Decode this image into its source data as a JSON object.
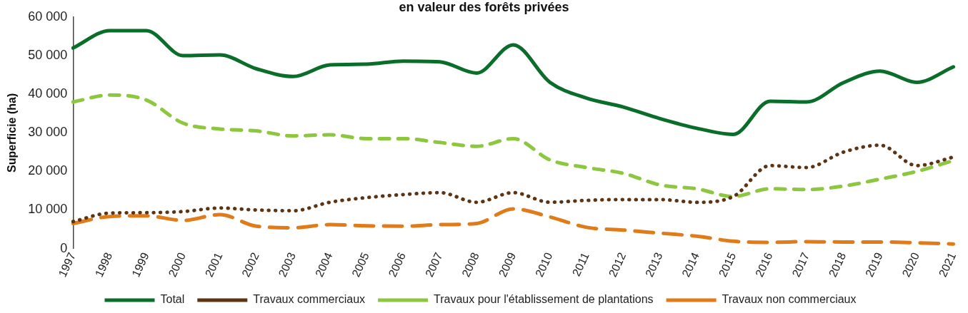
{
  "chart_data": {
    "type": "line",
    "title": "en valeur des forêts privées",
    "ylabel": "Superficie (ha)",
    "categories": [
      "1997",
      "1998",
      "1999",
      "2000",
      "2001",
      "2002",
      "2003",
      "2004",
      "2005",
      "2006",
      "2007",
      "2008",
      "2009",
      "2010",
      "2011",
      "2012",
      "2013",
      "2014",
      "2015",
      "2016",
      "2017",
      "2018",
      "2019",
      "2020",
      "2021"
    ],
    "series": [
      {
        "name": "Total",
        "color": "#0a6e2a",
        "line_style": "solid",
        "values": [
          52000,
          56500,
          56500,
          50000,
          50200,
          46600,
          44600,
          47600,
          47800,
          48600,
          48400,
          45500,
          52800,
          43100,
          39000,
          36700,
          33700,
          31200,
          29600,
          38200,
          38000,
          43000,
          46000,
          43100,
          47100
        ]
      },
      {
        "name": "Travaux commerciaux",
        "color": "#5c3313",
        "line_style": "dotted",
        "values": [
          7000,
          9200,
          9300,
          9600,
          10500,
          10000,
          9800,
          12000,
          13200,
          14000,
          14500,
          12000,
          14500,
          12000,
          12500,
          12700,
          12700,
          12000,
          13500,
          21500,
          21000,
          25000,
          26800,
          21500,
          23700
        ]
      },
      {
        "name": "Travaux pour l'établissement de plantations",
        "color": "#8dc63f",
        "line_style": "dashed",
        "values": [
          38000,
          39800,
          38500,
          32500,
          31000,
          30500,
          29200,
          29500,
          28500,
          28500,
          27500,
          26500,
          28500,
          23000,
          21000,
          19500,
          16500,
          15500,
          13500,
          15500,
          15300,
          16200,
          18000,
          20000,
          22800
        ]
      },
      {
        "name": "Travaux non commerciaux",
        "color": "#e07b1a",
        "line_style": "dashed",
        "values": [
          6500,
          8300,
          8500,
          7300,
          8800,
          5800,
          5400,
          6200,
          5900,
          5800,
          6200,
          6500,
          10300,
          8200,
          5500,
          4800,
          4000,
          3200,
          1900,
          1600,
          1800,
          1700,
          1700,
          1500,
          1200
        ]
      }
    ],
    "ylim": [
      0,
      60000
    ],
    "yticks": [
      0,
      {
        "value": 10000,
        "label": "10 000"
      },
      {
        "value": 20000,
        "label": "20 000"
      },
      {
        "value": 30000,
        "label": "30 000"
      },
      {
        "value": 40000,
        "label": "40 000"
      },
      {
        "value": 50000,
        "label": "50 000"
      },
      {
        "value": 60000,
        "label": "60 000"
      }
    ],
    "grid": false,
    "legend": "bottom",
    "marker": "none"
  }
}
